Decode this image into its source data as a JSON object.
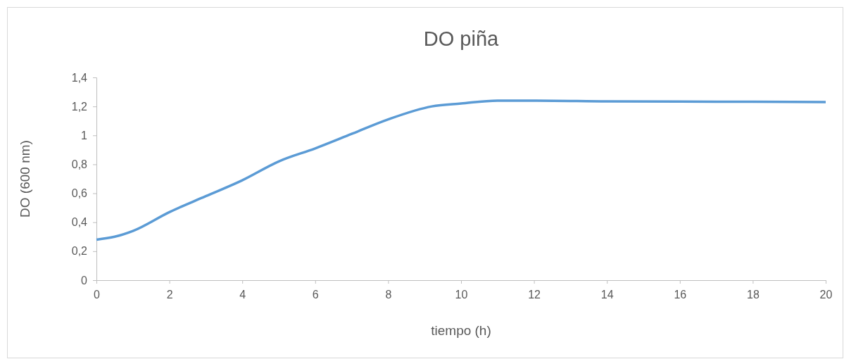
{
  "chart_data": {
    "type": "line",
    "title": "DO piña",
    "xlabel": "tiempo (h)",
    "ylabel": "DO (600 nm)",
    "x": [
      0,
      0.5,
      1,
      2,
      3,
      4,
      5,
      6,
      7,
      8,
      9.2,
      10,
      11,
      12,
      14,
      16,
      18,
      20
    ],
    "series": [
      {
        "color": "#5b9bd5",
        "values": [
          0.28,
          0.3,
          0.34,
          0.47,
          0.58,
          0.69,
          0.82,
          0.91,
          1.01,
          1.11,
          1.2,
          1.22,
          1.24,
          1.24,
          1.235,
          1.233,
          1.232,
          1.23
        ]
      }
    ],
    "xlim": [
      0,
      20
    ],
    "xticks": [
      0,
      2,
      4,
      6,
      8,
      10,
      12,
      14,
      16,
      18,
      20
    ],
    "ylim": [
      0,
      1.4
    ],
    "yticks": [
      {
        "value": 0,
        "label": "0"
      },
      {
        "value": 0.2,
        "label": "0,2"
      },
      {
        "value": 0.4,
        "label": "0,4"
      },
      {
        "value": 0.6,
        "label": "0,6"
      },
      {
        "value": 0.8,
        "label": "0,8"
      },
      {
        "value": 1,
        "label": "1"
      },
      {
        "value": 1.2,
        "label": "1,2"
      },
      {
        "value": 1.4,
        "label": "1,4"
      }
    ],
    "grid": false,
    "marker": "none",
    "line_style": "solid"
  }
}
